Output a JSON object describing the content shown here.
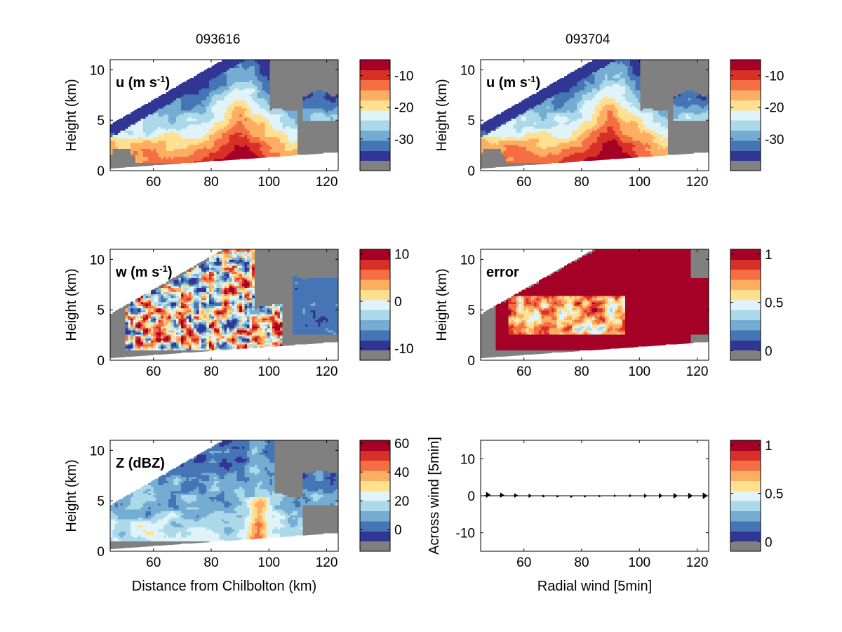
{
  "column_titles": [
    "093616",
    "093704"
  ],
  "palette": {
    "missing": "#808080",
    "levels": [
      "#313695",
      "#4575b4",
      "#74add1",
      "#abd9e9",
      "#e0f3f8",
      "#fee090",
      "#fdae61",
      "#f46d43",
      "#d73027",
      "#a50026"
    ]
  },
  "chart_data": [
    {
      "type": "heatmap",
      "panel": "u-093616",
      "label": "u (m s",
      "label_sup": "-1",
      "label_tail": ")",
      "ylabel": "Height (km)",
      "xlabel": "",
      "xlim": [
        45,
        124
      ],
      "ylim": [
        0,
        11
      ],
      "xticks": [
        60,
        80,
        100,
        120
      ],
      "yticks": [
        0,
        5,
        10
      ],
      "colorbar": {
        "ticks": [
          "-10",
          "-20",
          "-30"
        ],
        "tick_values": [
          -10,
          -20,
          -30
        ],
        "range": [
          -40,
          -5
        ]
      },
      "description_values": {
        "low_level_max": -8,
        "upper_level_min": -38
      }
    },
    {
      "type": "heatmap",
      "panel": "u-093704",
      "label": "u (m s",
      "label_sup": "-1",
      "label_tail": ")",
      "ylabel": "Height (km)",
      "xlabel": "",
      "xlim": [
        45,
        124
      ],
      "ylim": [
        0,
        11
      ],
      "xticks": [
        60,
        80,
        100,
        120
      ],
      "yticks": [
        0,
        5,
        10
      ],
      "colorbar": {
        "ticks": [
          "-10",
          "-20",
          "-30"
        ],
        "tick_values": [
          -10,
          -20,
          -30
        ],
        "range": [
          -40,
          -5
        ]
      }
    },
    {
      "type": "heatmap",
      "panel": "w-093616",
      "label": "w (m s",
      "label_sup": "-1",
      "label_tail": ")",
      "ylabel": "Height (km)",
      "xlabel": "",
      "xlim": [
        45,
        124
      ],
      "ylim": [
        0,
        11
      ],
      "xticks": [
        60,
        80,
        100,
        120
      ],
      "yticks": [
        0,
        5,
        10
      ],
      "colorbar": {
        "ticks": [
          "10",
          "0",
          "-10"
        ],
        "tick_values": [
          10,
          0,
          -10
        ],
        "range": [
          -12.5,
          11
        ]
      }
    },
    {
      "type": "heatmap",
      "panel": "error-093704",
      "label": "error",
      "label_sup": "",
      "label_tail": "",
      "ylabel": "Height (km)",
      "xlabel": "",
      "xlim": [
        45,
        124
      ],
      "ylim": [
        0,
        11
      ],
      "xticks": [
        60,
        80,
        100,
        120
      ],
      "yticks": [
        0,
        5,
        10
      ],
      "colorbar": {
        "ticks": [
          "1",
          "0.5",
          "0"
        ],
        "tick_values": [
          1,
          0.5,
          0
        ],
        "range": [
          -0.1,
          1.05
        ]
      }
    },
    {
      "type": "heatmap",
      "panel": "Z-093616",
      "label": "Z (dBZ)",
      "label_sup": "",
      "label_tail": "",
      "ylabel": "Height (km)",
      "xlabel": "Distance from Chilbolton (km)",
      "xlim": [
        45,
        124
      ],
      "ylim": [
        0,
        11
      ],
      "xticks": [
        60,
        80,
        100,
        120
      ],
      "yticks": [
        0,
        5,
        10
      ],
      "colorbar": {
        "ticks": [
          "60",
          "40",
          "20",
          "0"
        ],
        "tick_values": [
          60,
          40,
          20,
          0
        ],
        "range": [
          -15,
          62
        ]
      }
    },
    {
      "type": "scatter",
      "panel": "wind-quiver",
      "ylabel": "Across wind [5min]",
      "xlabel": "Radial wind [5min]",
      "xlim": [
        45,
        124
      ],
      "ylim": [
        -15,
        15
      ],
      "xticks": [
        60,
        80,
        100,
        120
      ],
      "yticks": [
        -10,
        0,
        10
      ],
      "x": [
        46,
        51,
        56,
        61,
        66,
        71,
        76,
        81,
        86,
        91,
        96,
        101,
        106,
        111,
        116,
        121
      ],
      "y": [
        0,
        0,
        0,
        0,
        0,
        0,
        0,
        0,
        0,
        0,
        0,
        0,
        0,
        0,
        0,
        0
      ],
      "u": [
        4.5,
        4.0,
        3.5,
        3.2,
        2.5,
        2.0,
        1.5,
        1.0,
        1.2,
        1.8,
        2.5,
        3.2,
        3.8,
        4.2,
        4.6,
        4.9
      ],
      "v": [
        0.6,
        0.4,
        0.2,
        0.0,
        -0.2,
        -0.4,
        -0.6,
        -0.4,
        -0.2,
        0.0,
        0.0,
        0.0,
        0.0,
        0.0,
        0.0,
        0.0
      ],
      "colorbar": {
        "ticks": [
          "1",
          "0.5",
          "0"
        ],
        "tick_values": [
          1,
          0.5,
          0
        ],
        "range": [
          -0.1,
          1.05
        ]
      }
    }
  ]
}
